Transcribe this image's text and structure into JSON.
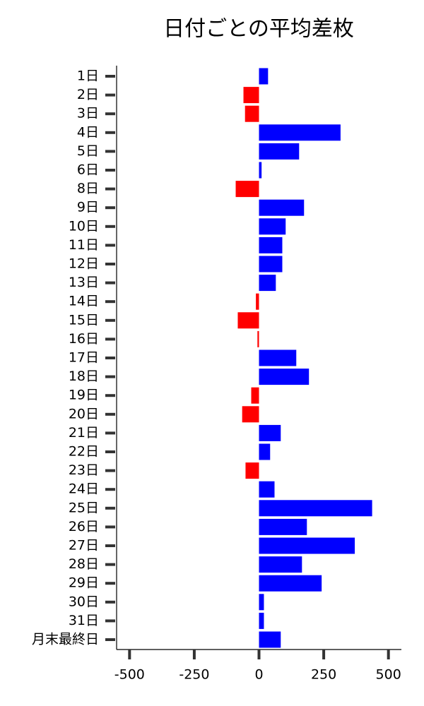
{
  "chart_data": {
    "type": "barh",
    "title": "日付ごとの平均差枚",
    "categories": [
      "1日",
      "2日",
      "3日",
      "4日",
      "5日",
      "6日",
      "8日",
      "9日",
      "10日",
      "11日",
      "12日",
      "13日",
      "14日",
      "15日",
      "16日",
      "17日",
      "18日",
      "19日",
      "20日",
      "21日",
      "22日",
      "23日",
      "24日",
      "25日",
      "26日",
      "27日",
      "28日",
      "29日",
      "30日",
      "31日",
      "月末最終日"
    ],
    "values": [
      35,
      -60,
      -54,
      315,
      155,
      10,
      -90,
      174,
      103,
      90,
      90,
      65,
      -12,
      -82,
      -6,
      144,
      193,
      -30,
      -65,
      84,
      43,
      -52,
      60,
      437,
      185,
      370,
      166,
      242,
      19,
      19,
      84
    ],
    "positive_color": "#0000ff",
    "negative_color": "#ff0000",
    "xlim": [
      -550,
      550
    ],
    "xticks": [
      -500,
      -250,
      0,
      250,
      500
    ]
  }
}
